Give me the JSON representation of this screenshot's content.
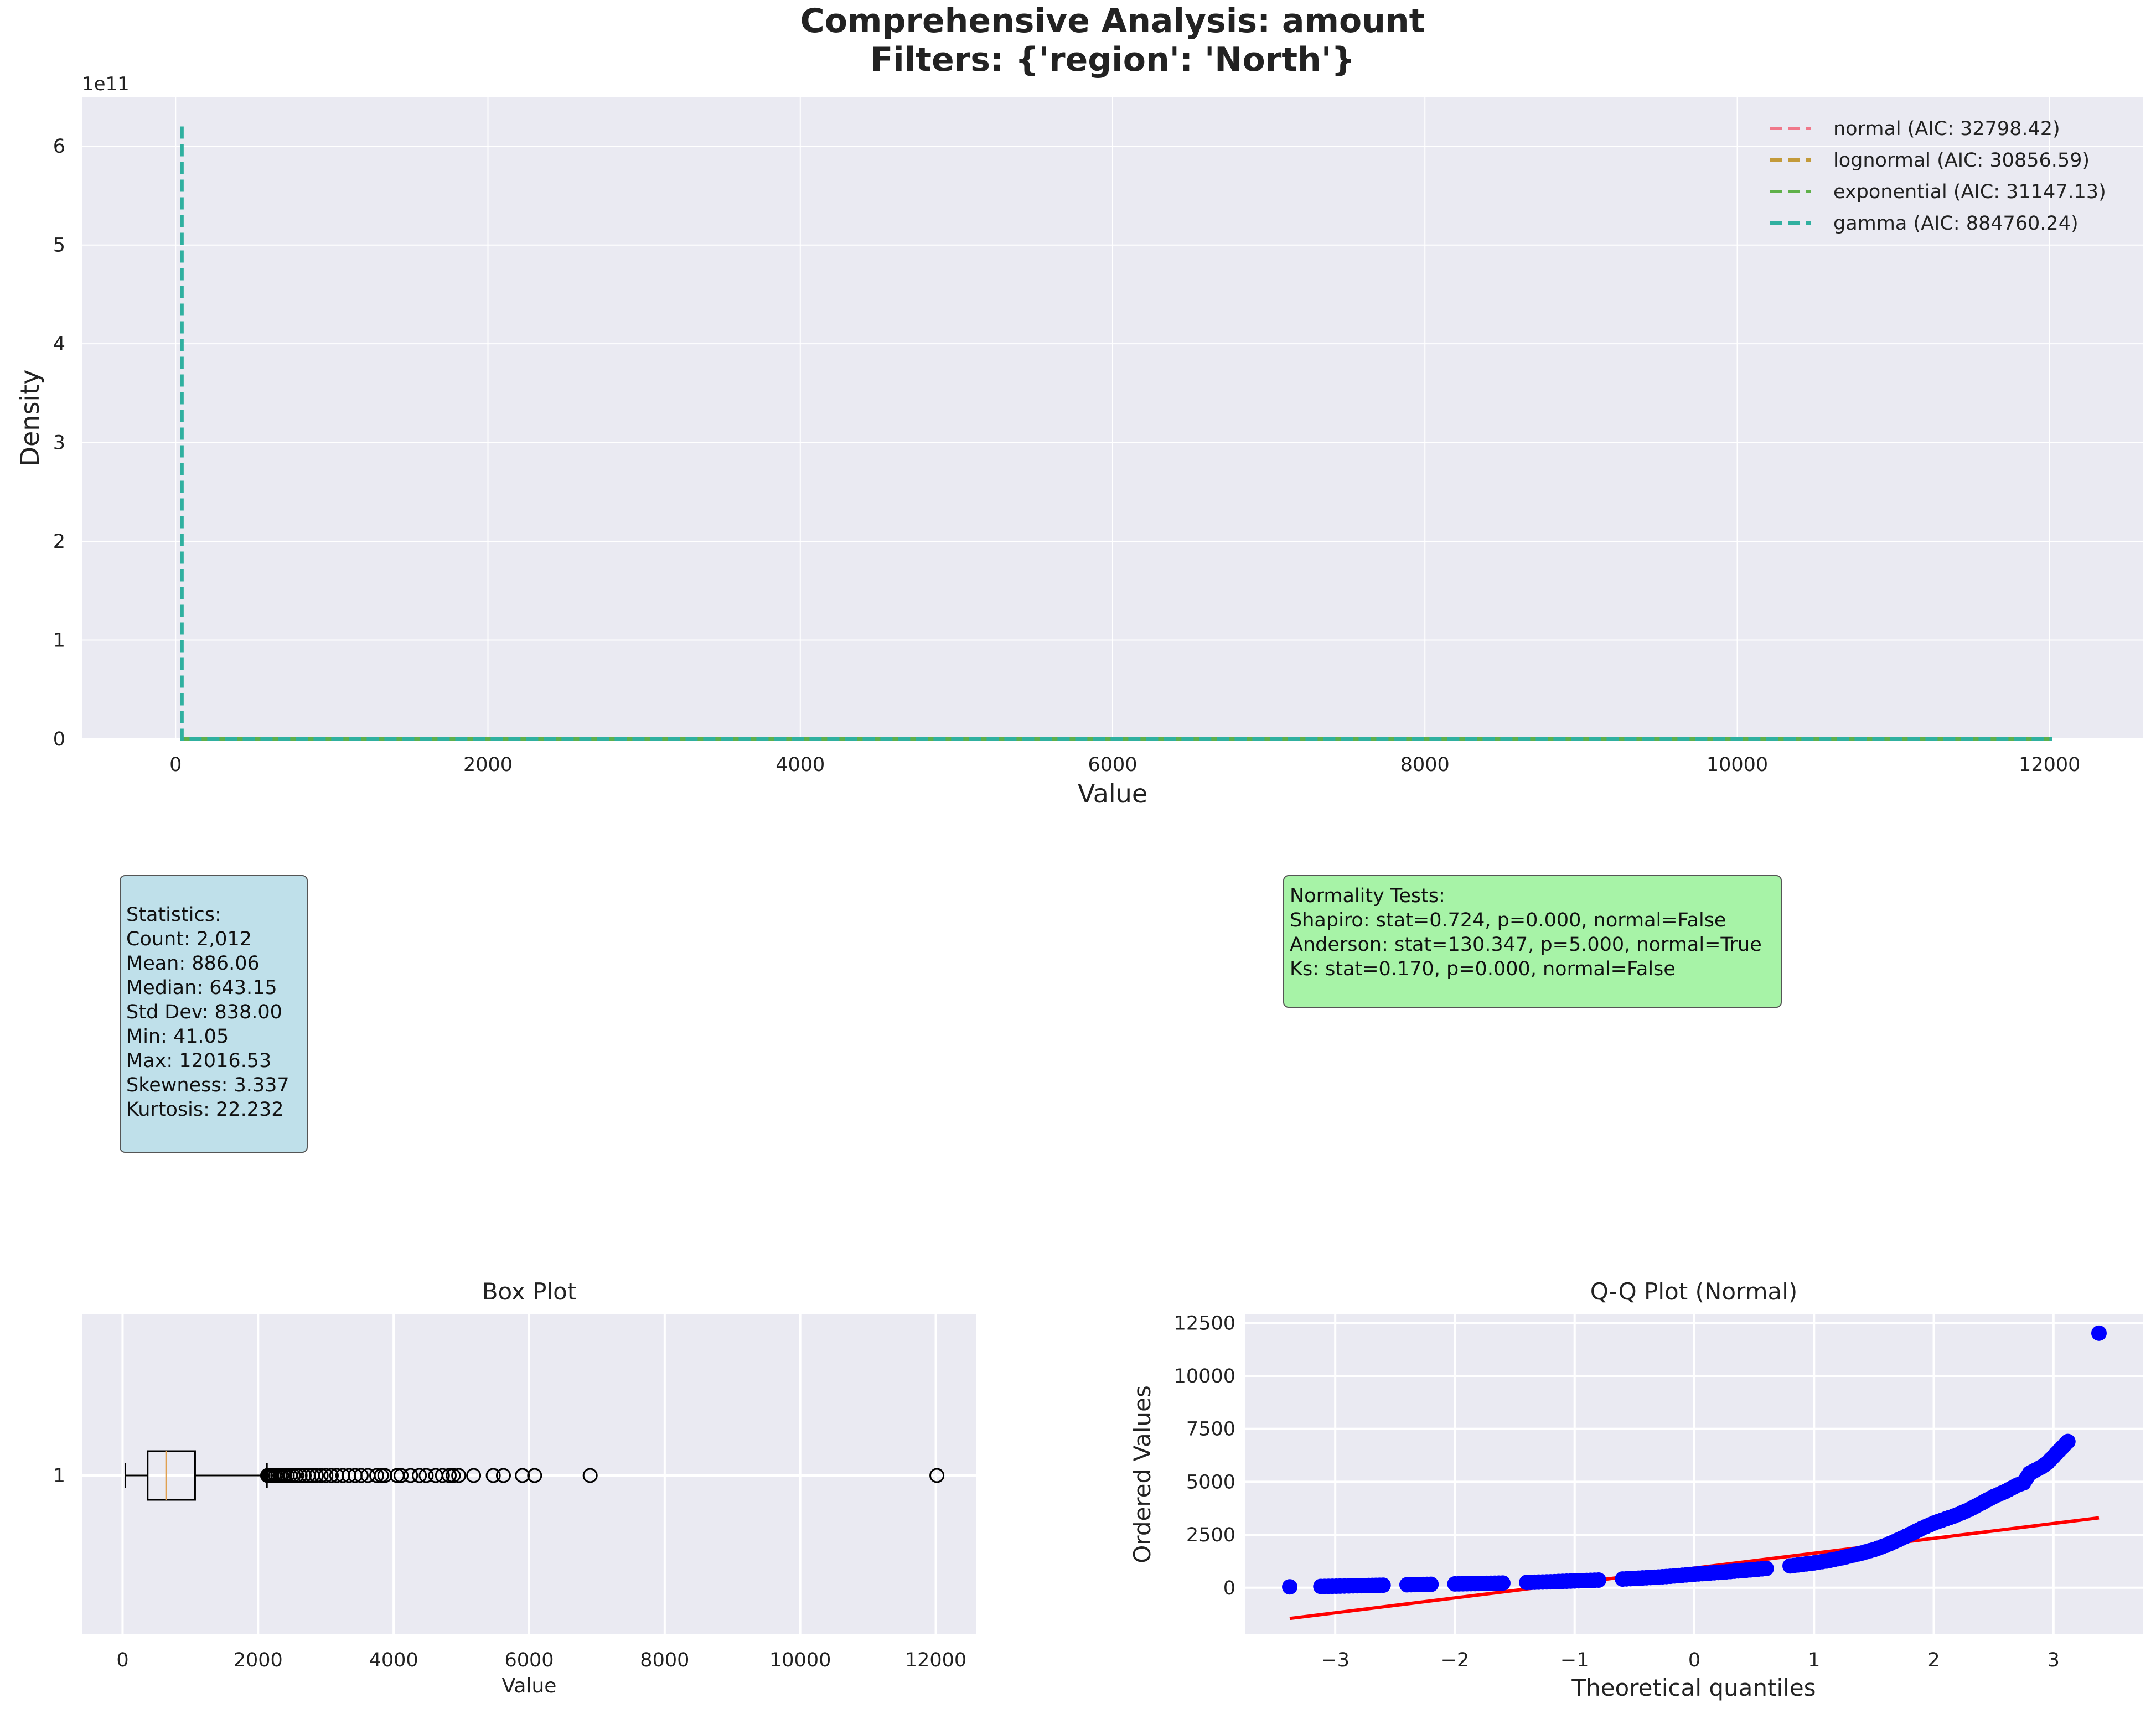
{
  "figure": {
    "title": "Comprehensive Analysis: amount\nFilters: {'region': 'North'}"
  },
  "chart_data": [
    {
      "type": "line",
      "name": "distribution-fit",
      "title": "",
      "xlabel": "Value",
      "ylabel": "Density",
      "offset_text": "1e11",
      "xlim": [
        -600,
        12600
      ],
      "ylim": [
        0,
        6.5
      ],
      "x_ticks": [
        0,
        2000,
        4000,
        6000,
        8000,
        10000,
        12000
      ],
      "y_ticks": [
        0,
        1,
        2,
        3,
        4,
        5,
        6
      ],
      "grid": true,
      "legend_position": "top-right",
      "series": [
        {
          "name": "normal (AIC: 32798.42)",
          "color": "#f0788a",
          "x": [
            41.05,
            12016.53
          ],
          "y": [
            0.0,
            0.0
          ]
        },
        {
          "name": "lognormal (AIC: 30856.59)",
          "color": "#c39a3a",
          "x": [
            41.05,
            12016.53
          ],
          "y": [
            0.0,
            0.0
          ]
        },
        {
          "name": "exponential (AIC: 31147.13)",
          "color": "#5fb04a",
          "x": [
            41.05,
            12016.53
          ],
          "y": [
            0.0,
            0.0
          ]
        },
        {
          "name": "gamma (AIC: 884760.24)",
          "color": "#30b0a0",
          "x": [
            41.05,
            41.05,
            60,
            12016.53
          ],
          "y": [
            6.2,
            0.0,
            0.0,
            0.0
          ]
        }
      ]
    },
    {
      "type": "box",
      "name": "box-plot",
      "title": "Box Plot",
      "xlabel": "Value",
      "ylabel": "",
      "category": "1",
      "xlim": [
        -600,
        12600
      ],
      "x_ticks": [
        0,
        2000,
        4000,
        6000,
        8000,
        10000,
        12000
      ],
      "grid": true,
      "box": {
        "whisker_low": 41.05,
        "q1": 370,
        "median": 643.15,
        "q3": 1070,
        "whisker_high": 2130
      },
      "box_color": "#000000",
      "median_color": "#e0a050",
      "outliers": [
        2140,
        2160,
        2180,
        2200,
        2230,
        2260,
        2290,
        2320,
        2350,
        2390,
        2430,
        2470,
        2520,
        2570,
        2620,
        2680,
        2740,
        2800,
        2860,
        2930,
        3000,
        3080,
        3160,
        3250,
        3340,
        3430,
        3520,
        3620,
        3750,
        3820,
        3870,
        4050,
        4110,
        4250,
        4380,
        4480,
        4620,
        4720,
        4820,
        4880,
        4960,
        5180,
        5470,
        5620,
        5900,
        6080,
        6900,
        12016.53
      ]
    },
    {
      "type": "scatter",
      "name": "qq-plot",
      "title": "Q-Q Plot (Normal)",
      "xlabel": "Theoretical quantiles",
      "ylabel": "Ordered Values",
      "xlim": [
        -3.75,
        3.75
      ],
      "ylim": [
        -2200,
        12900
      ],
      "x_ticks": [
        -3,
        -2,
        -1,
        0,
        1,
        2,
        3
      ],
      "y_ticks": [
        0,
        2500,
        5000,
        7500,
        10000,
        12500
      ],
      "grid": true,
      "point_color": "#0000ff",
      "line_color": "#ff0000",
      "fit_line": {
        "x": [
          -3.38,
          3.38
        ],
        "y": [
          -1450,
          3300
        ]
      },
      "points": {
        "x": [
          -3.38,
          -3.12,
          -2.96,
          -2.85,
          -2.75,
          -2.6,
          -2.4,
          -2.2,
          -2.0,
          -1.8,
          -1.6,
          -1.4,
          -1.2,
          -1.0,
          -0.8,
          -0.6,
          -0.4,
          -0.2,
          0.0,
          0.2,
          0.4,
          0.6,
          0.8,
          1.0,
          1.1,
          1.2,
          1.3,
          1.4,
          1.5,
          1.6,
          1.7,
          1.8,
          1.9,
          2.0,
          2.1,
          2.2,
          2.3,
          2.4,
          2.5,
          2.6,
          2.65,
          2.7,
          2.75,
          2.8,
          2.9,
          2.95,
          3.12,
          3.38
        ],
        "y": [
          41,
          60,
          75,
          90,
          100,
          120,
          140,
          160,
          180,
          200,
          220,
          250,
          280,
          320,
          360,
          410,
          470,
          540,
          640,
          720,
          810,
          910,
          1030,
          1170,
          1260,
          1370,
          1500,
          1640,
          1800,
          2000,
          2250,
          2520,
          2800,
          3050,
          3250,
          3450,
          3700,
          4000,
          4300,
          4550,
          4700,
          4850,
          4950,
          5400,
          5700,
          5900,
          6900,
          12016
        ]
      }
    }
  ],
  "stats_box": {
    "text": "Statistics:\nCount: 2,012\nMean: 886.06\nMedian: 643.15\nStd Dev: 838.00\nMin: 41.05\nMax: 12016.53\nSkewness: 3.337\nKurtosis: 22.232"
  },
  "normality_box": {
    "text": "Normality Tests:\nShapiro: stat=0.724, p=0.000, normal=False\nAnderson: stat=130.347, p=5.000, normal=True\nKs: stat=0.170, p=0.000, normal=False"
  }
}
